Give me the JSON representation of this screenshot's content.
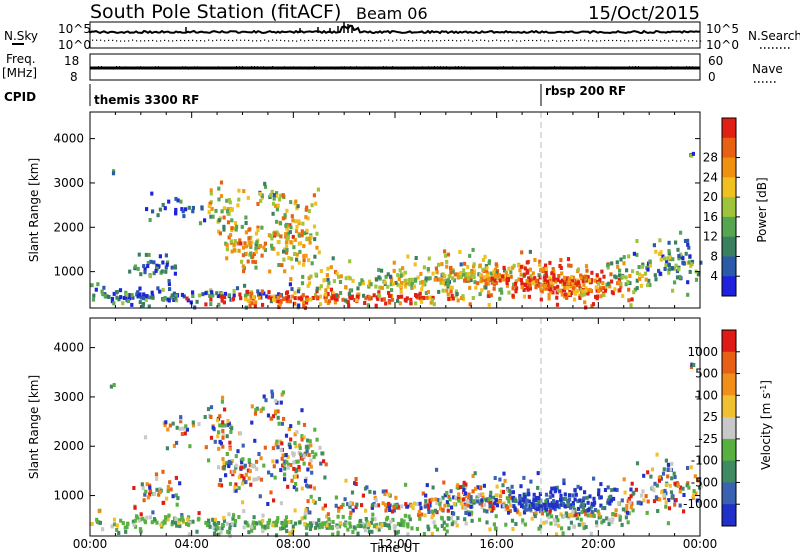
{
  "header": {
    "station": "South Pole Station (fitACF)",
    "beam": "Beam 06",
    "date": "15/Oct/2015"
  },
  "strips": {
    "nsky_label": "N.Sky",
    "nsearch_label": "N.Search",
    "noise_ticks": [
      "10^5",
      "10^0"
    ],
    "freq_label": "Freq.",
    "freq_unit": "[MHz]",
    "freq_ticks": [
      "18",
      "8"
    ],
    "nave_label": "Nave",
    "nave_ticks": [
      "60",
      "0"
    ],
    "cpid_label": "CPID",
    "cpid_events": [
      {
        "text": "themis 3300 RF",
        "hour": 0.0
      },
      {
        "text": "rbsp 200 RF",
        "hour": 18.0
      }
    ]
  },
  "chart_data": [
    {
      "type": "heatmap",
      "name": "power",
      "ylabel": "Slant Range [km]",
      "xlim": [
        0,
        24
      ],
      "ylim": [
        180,
        4600
      ],
      "yticks": [
        "1000",
        "2000",
        "3000",
        "4000"
      ],
      "colorbar": {
        "label": "Power [dB]",
        "ticks": [
          "4",
          "8",
          "12",
          "16",
          "20",
          "24",
          "28"
        ],
        "colors": [
          "#1f22dd",
          "#2a5aa8",
          "#3a8060",
          "#56a550",
          "#9dc43a",
          "#f0c020",
          "#f0900f",
          "#e86012",
          "#e02015"
        ]
      }
    },
    {
      "type": "heatmap",
      "name": "velocity",
      "ylabel": "Slant Range [km]",
      "xlabel": "Time UT",
      "xlim": [
        0,
        24
      ],
      "ylim": [
        180,
        4600
      ],
      "xticks": [
        "00:00",
        "04:00",
        "08:00",
        "12:00",
        "16:00",
        "20:00",
        "00:00"
      ],
      "yticks": [
        "1000",
        "2000",
        "3000",
        "4000"
      ],
      "colorbar": {
        "label": "Velocity [m s^-1]",
        "ticks": [
          "1000",
          "500",
          "100",
          "25",
          "-25",
          "-100",
          "-500",
          "-1000"
        ],
        "colors": [
          "#2030c8",
          "#3a62b0",
          "#3f8a60",
          "#58b040",
          "#c8c8c8",
          "#f0c030",
          "#f0901a",
          "#e86015",
          "#e01a15"
        ]
      }
    }
  ]
}
